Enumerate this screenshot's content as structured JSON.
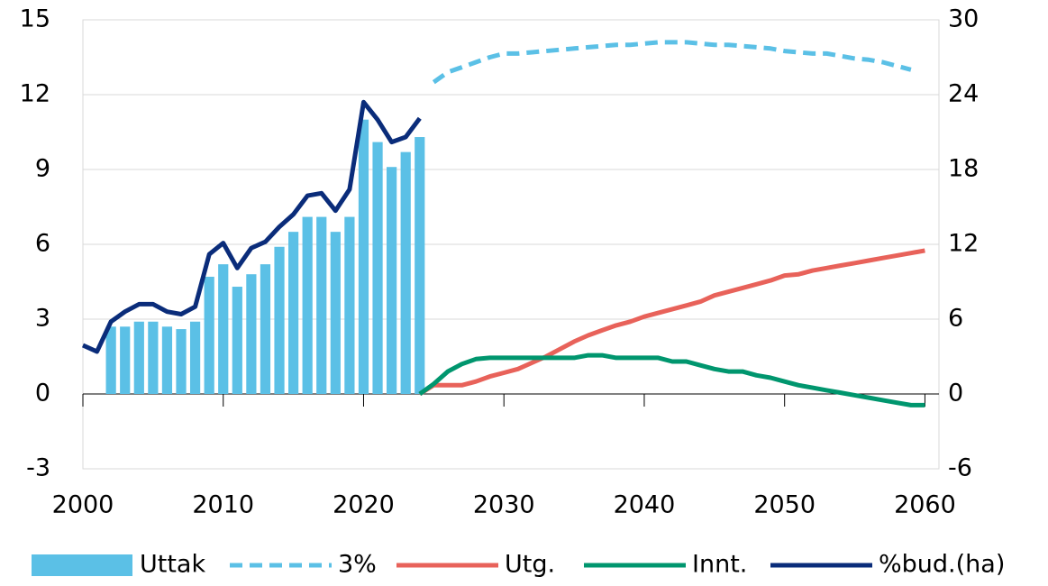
{
  "chart_data": {
    "type": "bar_line",
    "xlim": [
      2000,
      2061
    ],
    "xticks": [
      2000,
      2010,
      2020,
      2030,
      2040,
      2050,
      2060
    ],
    "ylim": [
      -3,
      15
    ],
    "yticks": [
      -3,
      0,
      3,
      6,
      9,
      12,
      15
    ],
    "y2lim": [
      -6,
      30
    ],
    "y2ticks": [
      -6,
      0,
      6,
      12,
      18,
      24,
      30
    ],
    "grid": true,
    "legend": "bottom",
    "series": [
      {
        "name": "Uttak",
        "type": "bar",
        "color": "#5bc0e6",
        "x": [
          2002,
          2003,
          2004,
          2005,
          2006,
          2007,
          2008,
          2009,
          2010,
          2011,
          2012,
          2013,
          2014,
          2015,
          2016,
          2017,
          2018,
          2019,
          2020,
          2021,
          2022,
          2023,
          2024
        ],
        "values": [
          2.7,
          2.7,
          2.9,
          2.9,
          2.7,
          2.6,
          2.9,
          4.7,
          5.2,
          4.3,
          4.8,
          5.2,
          5.9,
          6.5,
          7.1,
          7.1,
          6.5,
          7.1,
          11.0,
          10.1,
          9.1,
          9.7,
          10.3
        ]
      },
      {
        "name": "3%",
        "type": "line",
        "dashed": true,
        "axis": "y2",
        "color": "#5bc0e6",
        "x": [
          2025,
          2026,
          2027,
          2028,
          2029,
          2030,
          2031,
          2032,
          2033,
          2034,
          2035,
          2036,
          2037,
          2038,
          2039,
          2040,
          2041,
          2042,
          2043,
          2044,
          2045,
          2046,
          2047,
          2048,
          2049,
          2050,
          2051,
          2052,
          2053,
          2054,
          2055,
          2056,
          2057,
          2058,
          2059
        ],
        "values": [
          25.0,
          25.8,
          26.2,
          26.6,
          27.0,
          27.3,
          27.3,
          27.4,
          27.5,
          27.6,
          27.7,
          27.8,
          27.9,
          28.0,
          28.0,
          28.1,
          28.2,
          28.2,
          28.2,
          28.1,
          28.0,
          28.0,
          27.9,
          27.8,
          27.7,
          27.5,
          27.4,
          27.3,
          27.3,
          27.1,
          26.9,
          26.8,
          26.6,
          26.3,
          26.0
        ]
      },
      {
        "name": "Utg.",
        "type": "line",
        "axis": "y2",
        "color": "#e8625a",
        "x": [
          2024,
          2025,
          2026,
          2027,
          2028,
          2029,
          2030,
          2031,
          2032,
          2033,
          2034,
          2035,
          2036,
          2037,
          2038,
          2039,
          2040,
          2041,
          2042,
          2043,
          2044,
          2045,
          2046,
          2047,
          2048,
          2049,
          2050,
          2051,
          2052,
          2053,
          2054,
          2055,
          2056,
          2057,
          2058,
          2059,
          2060
        ],
        "values": [
          0,
          0.7,
          0.7,
          0.7,
          1.0,
          1.4,
          1.7,
          2.0,
          2.5,
          3.0,
          3.6,
          4.2,
          4.7,
          5.1,
          5.5,
          5.8,
          6.2,
          6.5,
          6.8,
          7.1,
          7.4,
          7.9,
          8.2,
          8.5,
          8.8,
          9.1,
          9.5,
          9.6,
          9.9,
          10.1,
          10.3,
          10.5,
          10.7,
          10.9,
          11.1,
          11.3,
          11.5
        ]
      },
      {
        "name": "Innt.",
        "type": "line",
        "axis": "y2",
        "color": "#00966e",
        "x": [
          2024,
          2025,
          2026,
          2027,
          2028,
          2029,
          2030,
          2031,
          2032,
          2033,
          2034,
          2035,
          2036,
          2037,
          2038,
          2039,
          2040,
          2041,
          2042,
          2043,
          2044,
          2045,
          2046,
          2047,
          2048,
          2049,
          2050,
          2051,
          2052,
          2053,
          2054,
          2055,
          2056,
          2057,
          2058,
          2059,
          2060
        ],
        "values": [
          0,
          0.8,
          1.8,
          2.4,
          2.8,
          2.9,
          2.9,
          2.9,
          2.9,
          2.9,
          2.9,
          2.9,
          3.1,
          3.1,
          2.9,
          2.9,
          2.9,
          2.9,
          2.6,
          2.6,
          2.3,
          2.0,
          1.8,
          1.8,
          1.5,
          1.3,
          1.0,
          0.7,
          0.5,
          0.3,
          0.1,
          -0.1,
          -0.3,
          -0.5,
          -0.7,
          -0.9,
          -0.9
        ]
      },
      {
        "name": "%bud.(ha)",
        "type": "line",
        "axis": "y2",
        "color": "#0a2c7a",
        "x": [
          2000,
          2001,
          2002,
          2003,
          2004,
          2005,
          2006,
          2007,
          2008,
          2009,
          2010,
          2011,
          2012,
          2013,
          2014,
          2015,
          2016,
          2017,
          2018,
          2019,
          2020,
          2021,
          2022,
          2023,
          2024
        ],
        "values": [
          3.9,
          3.4,
          5.8,
          6.6,
          7.2,
          7.2,
          6.6,
          6.4,
          7.0,
          11.2,
          12.1,
          10.1,
          11.7,
          12.2,
          13.4,
          14.4,
          15.9,
          16.1,
          14.7,
          16.4,
          23.4,
          22.0,
          20.2,
          20.6,
          22.1
        ]
      }
    ]
  }
}
